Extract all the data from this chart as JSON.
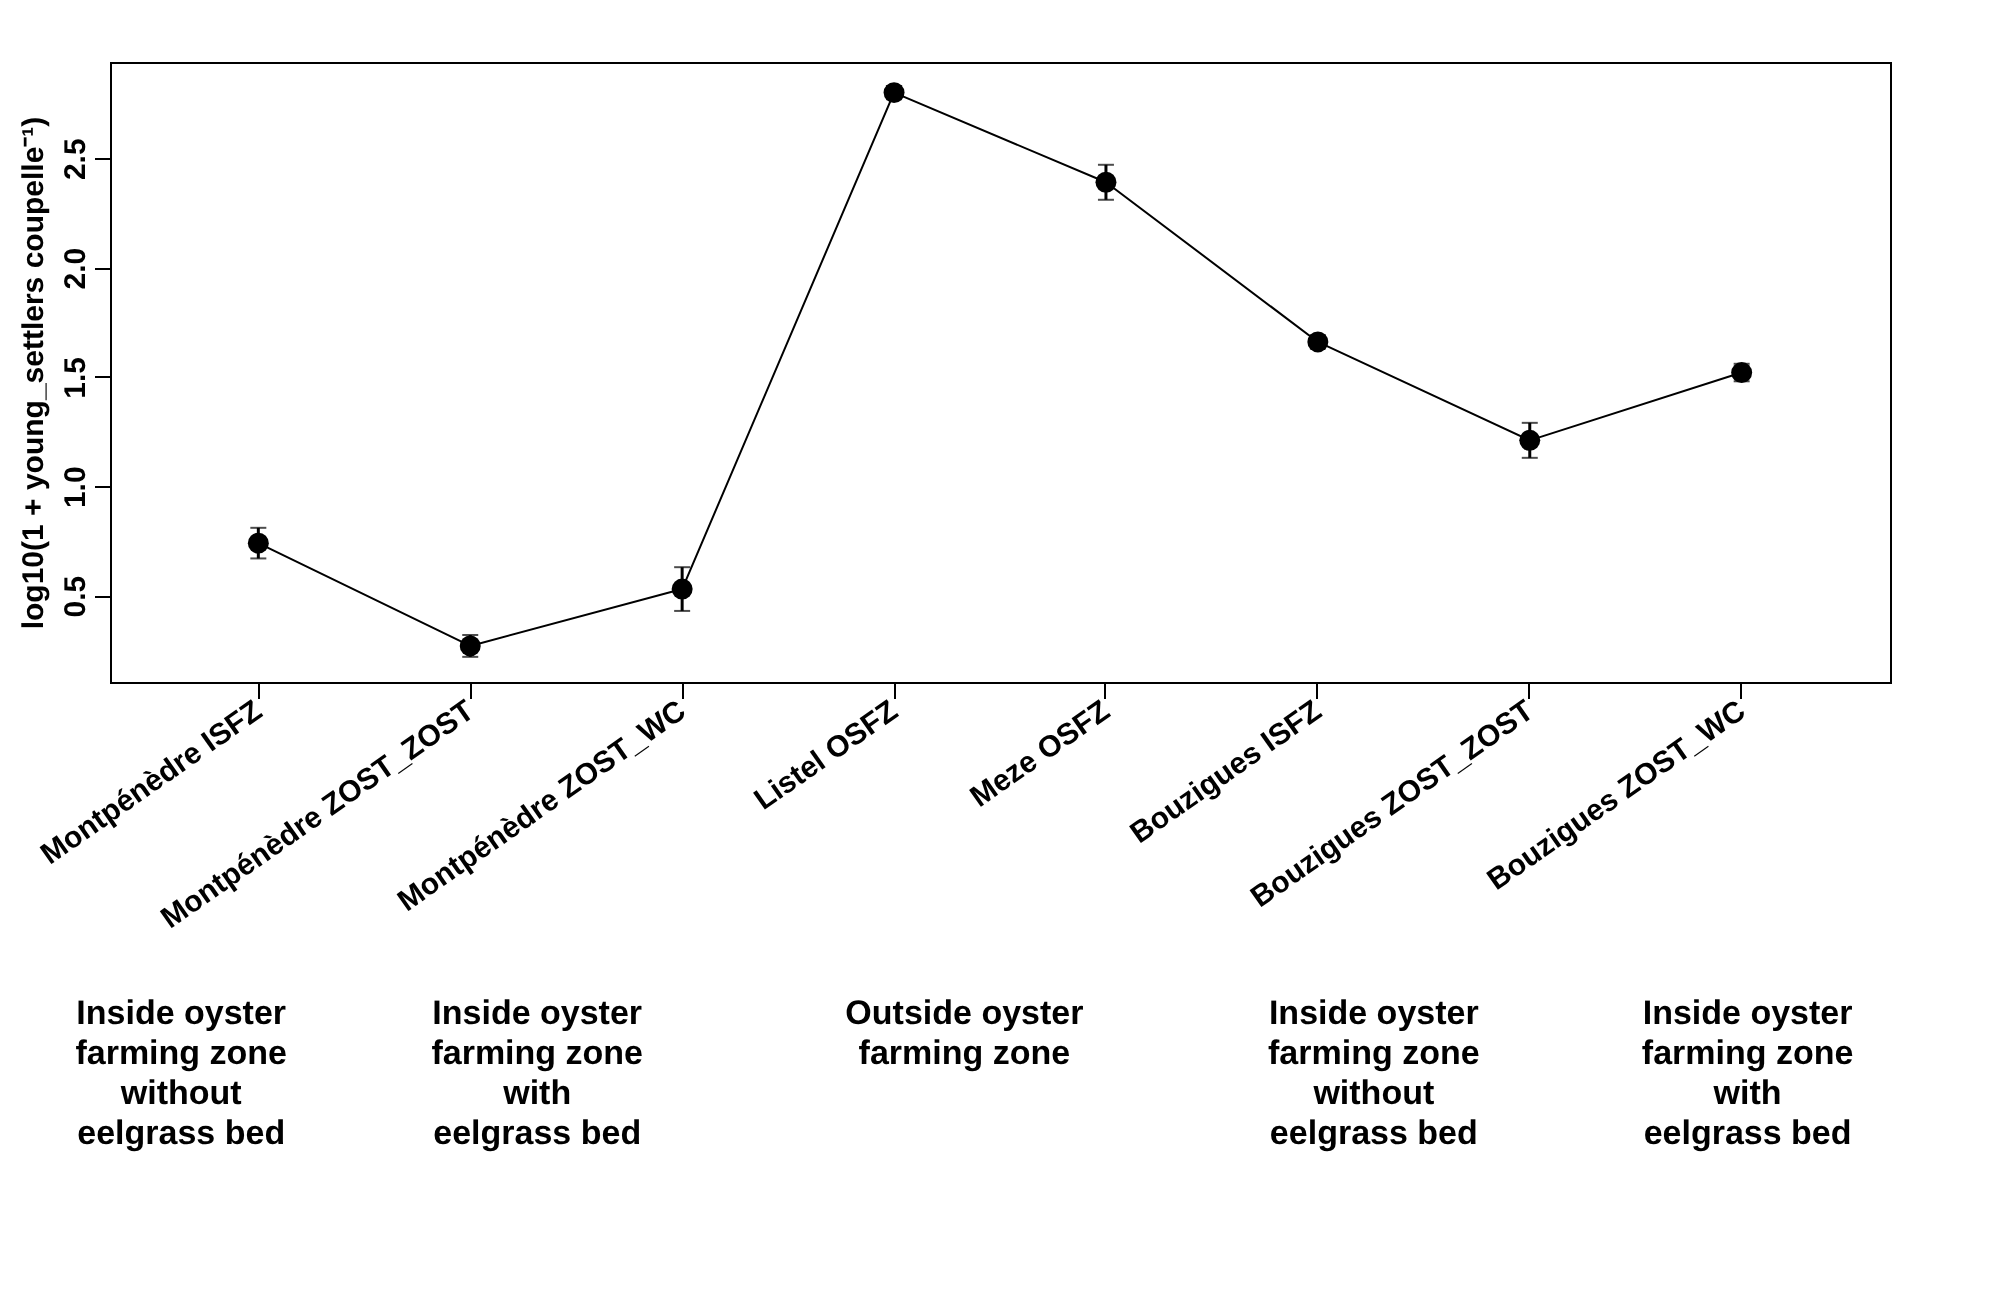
{
  "chart_data": {
    "type": "line",
    "ylabel": "log10(1 + young_settlers coupelle⁻¹)",
    "categories": [
      "Montpénèdre ISFZ",
      "Montpénèdre ZOST_ZOST",
      "Montpénèdre ZOST_WC",
      "Listel OSFZ",
      "Meze OSFZ",
      "Bouzigues ISFZ",
      "Bouzigues ZOST_ZOST",
      "Bouzigues ZOST_WC"
    ],
    "series": [
      {
        "color": "#000000",
        "values": [
          0.74,
          0.27,
          0.53,
          2.8,
          2.39,
          1.66,
          1.21,
          1.52
        ],
        "errors": [
          0.07,
          0.05,
          0.1,
          0.03,
          0.08,
          0.03,
          0.08,
          0.04
        ]
      }
    ],
    "ylim": [
      0.105,
      2.94
    ],
    "yticks": [
      0.5,
      {
        "value": 1,
        "label": "1.0"
      },
      1.5,
      {
        "value": 2,
        "label": "2.0"
      },
      2.5
    ],
    "marker": "circle",
    "line_style": "solid",
    "grid": false,
    "annotations": [
      "Inside oyster\nfarming zone\nwithout\neelgrass bed",
      "Inside oyster\nfarming zone\nwith\neelgrass bed",
      "Outside oyster\nfarming zone",
      "Inside oyster\nfarming zone\nwithout\neelgrass bed",
      "Inside oyster\nfarming zone\nwith\neelgrass bed"
    ]
  }
}
